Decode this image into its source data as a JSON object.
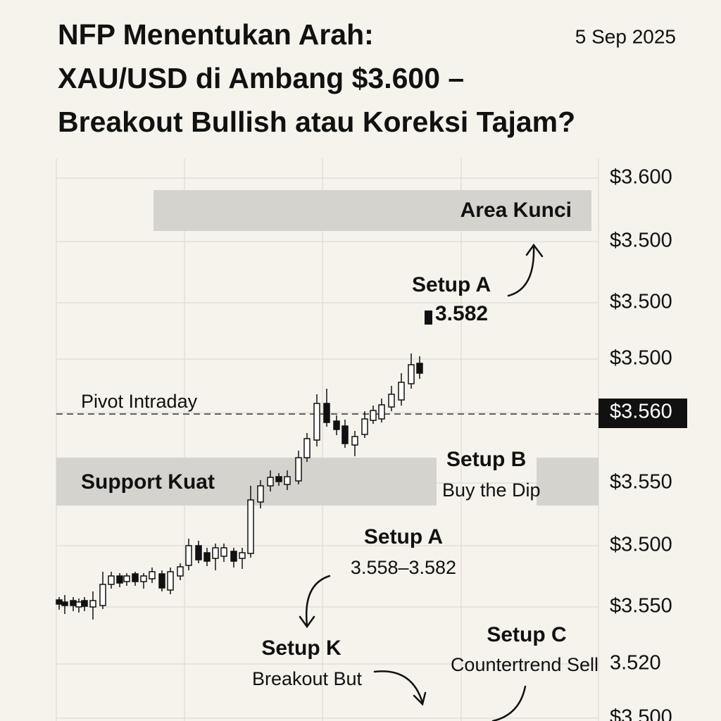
{
  "header": {
    "title_lines": [
      "NFP Menentukan Arah:",
      "XAU/USD di Ambang $3.600 –",
      "Breakout Bullish atau Koreksi Tajam?"
    ],
    "date": "5 Sep 2025"
  },
  "axis_labels": [
    "$3.600",
    "$3.500",
    "$3.500",
    "$3.500",
    "$3.560",
    "$3.550",
    "$3.500",
    "$3.550",
    "3.520",
    "$3.500"
  ],
  "annotations": {
    "key_area": "Area Kunci",
    "setup_a_top": {
      "title": "Setup A",
      "value": "3.582"
    },
    "pivot": "Pivot Intraday",
    "support": "Support Kuat",
    "setup_b": {
      "title": "Setup B",
      "subtitle": "Buy the Dip"
    },
    "setup_a_mid": {
      "title": "Setup A",
      "subtitle": "3.558–3.582"
    },
    "setup_k": {
      "title": "Setup K",
      "subtitle": "Breakout But"
    },
    "setup_c": {
      "title": "Setup C",
      "subtitle": "Countertrend Sell"
    }
  }
}
